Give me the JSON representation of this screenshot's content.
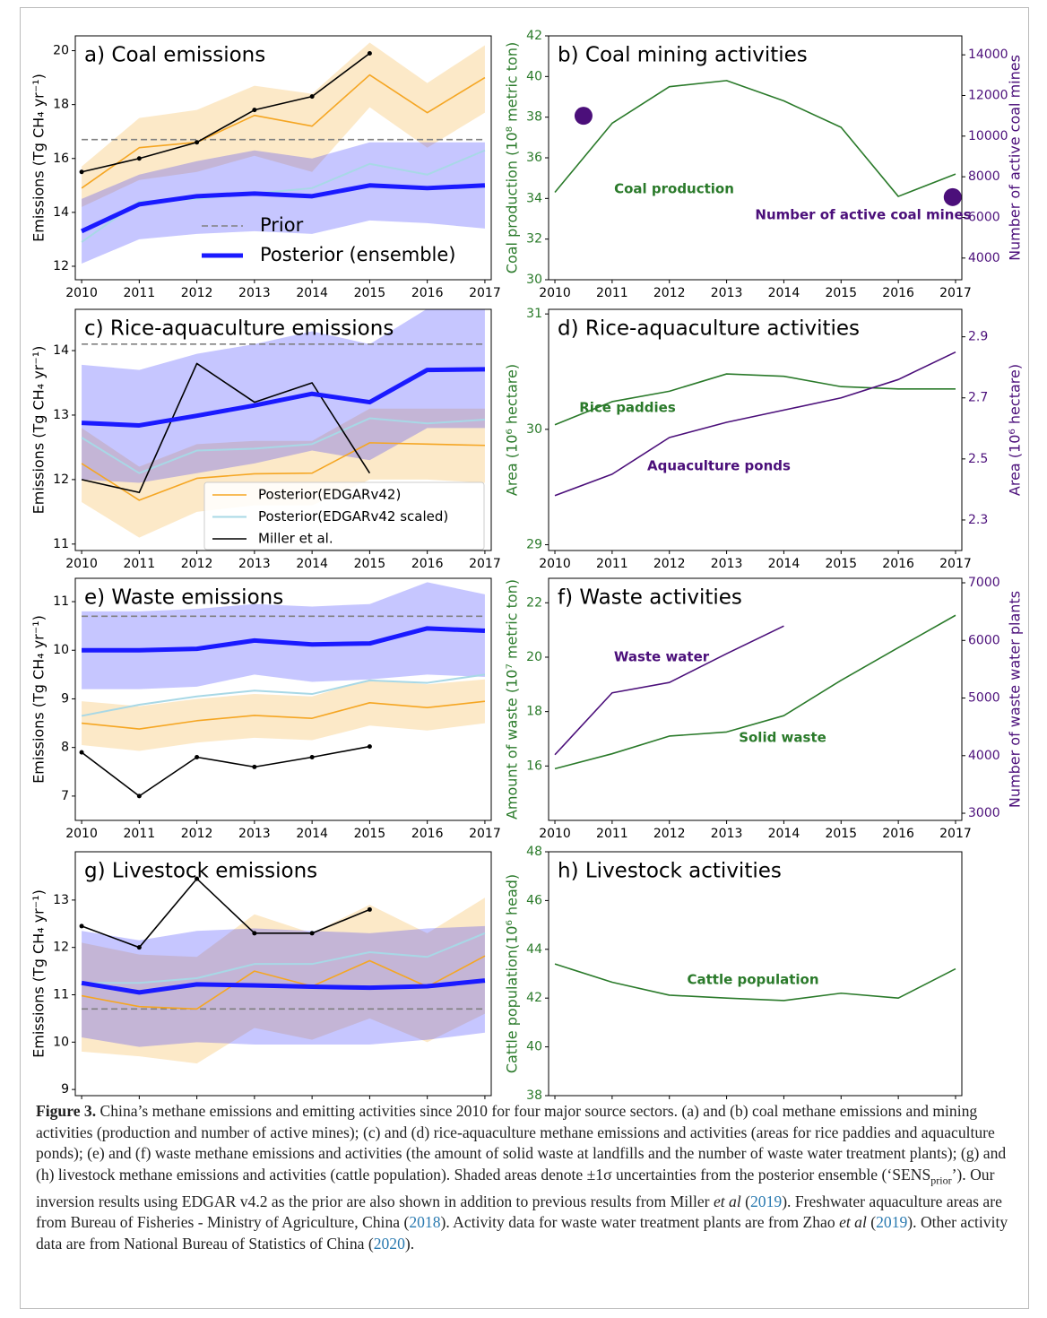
{
  "chart_data": [
    {
      "type": "line",
      "title": "a) Coal emissions",
      "ylabel": "Emissions (Tg CH₄ yr⁻¹)",
      "x": [
        2010,
        2011,
        2012,
        2013,
        2014,
        2015,
        2016,
        2017
      ],
      "xlim": [
        2009.89,
        2017.11
      ],
      "xticks": [
        2010,
        2011,
        2012,
        2013,
        2014,
        2015,
        2016,
        2017
      ],
      "ylim": [
        11.5,
        20.55
      ],
      "yticks": [
        12,
        14,
        16,
        18,
        20
      ],
      "legend": "lower right",
      "series": [
        {
          "name": "Prior",
          "color": "#808080",
          "style": "dashed",
          "values": [
            16.7,
            16.7,
            16.7,
            16.7,
            16.7,
            16.7,
            16.7,
            16.7
          ]
        },
        {
          "color": "#f5a623",
          "values": [
            14.9,
            16.4,
            16.6,
            17.6,
            17.2,
            19.1,
            17.7,
            19.0
          ],
          "lower": [
            14.2,
            15.2,
            15.5,
            16.1,
            15.5,
            17.9,
            16.4,
            17.7
          ],
          "upper": [
            15.7,
            17.5,
            17.8,
            18.7,
            18.4,
            20.3,
            18.8,
            20.2
          ]
        },
        {
          "color": "#a8d8e6",
          "values": [
            12.9,
            14.4,
            14.5,
            14.7,
            14.9,
            15.8,
            15.4,
            16.3
          ]
        },
        {
          "color": "#000000",
          "marker": "dot",
          "values": [
            15.5,
            16.0,
            16.6,
            17.8,
            18.3,
            19.9,
            null,
            null
          ]
        },
        {
          "name": "Posterior (ensemble)",
          "color": "#1a1aff",
          "style": "thick",
          "values": [
            13.3,
            14.3,
            14.6,
            14.7,
            14.6,
            15.0,
            14.9,
            15.0
          ],
          "lower": [
            12.1,
            13.0,
            13.2,
            13.3,
            13.2,
            13.7,
            13.6,
            13.4
          ],
          "upper": [
            14.5,
            15.4,
            15.9,
            16.3,
            16.0,
            16.6,
            16.6,
            16.6
          ]
        }
      ]
    },
    {
      "type": "line",
      "title": "b) Coal mining activities",
      "ylabel": "Coal production (10⁸ metric ton)",
      "y2label": "Number of active coal mines",
      "ycolor": "#2a7a2a",
      "y2color": "#4b0f7a",
      "x": [
        2010,
        2011,
        2012,
        2013,
        2014,
        2015,
        2016,
        2017
      ],
      "xlim": [
        2009.89,
        2017.11
      ],
      "xticks": [
        2010,
        2011,
        2012,
        2013,
        2014,
        2015,
        2016,
        2017
      ],
      "ylim": [
        30,
        42
      ],
      "yticks": [
        30,
        32,
        34,
        36,
        38,
        40,
        42
      ],
      "y2lim": [
        2933,
        14933
      ],
      "y2ticks": [
        4000,
        6000,
        8000,
        10000,
        12000,
        14000
      ],
      "series": [
        {
          "name": "Coal production",
          "color": "#2a7a2a",
          "values": [
            34.3,
            37.7,
            39.5,
            39.8,
            38.8,
            37.5,
            34.1,
            35.2
          ]
        },
        {
          "name": "Number of active coal mines",
          "color": "#4b0f7a",
          "axis": "y2",
          "mode": "markers",
          "x": [
            2010.5,
            2016.95
          ],
          "values": [
            11000,
            7000
          ]
        }
      ]
    },
    {
      "type": "line",
      "title": "c) Rice-aquaculture emissions",
      "ylabel": "Emissions (Tg CH₄ yr⁻¹)",
      "x": [
        2010,
        2011,
        2012,
        2013,
        2014,
        2015,
        2016,
        2017
      ],
      "xlim": [
        2009.89,
        2017.11
      ],
      "xticks": [
        2010,
        2011,
        2012,
        2013,
        2014,
        2015,
        2016,
        2017
      ],
      "ylim": [
        10.9,
        14.64
      ],
      "yticks": [
        11,
        12,
        13,
        14
      ],
      "legend": "lower center",
      "legend_frame": true,
      "series": [
        {
          "color": "#808080",
          "style": "dashed",
          "values": [
            14.1,
            14.1,
            14.1,
            14.1,
            14.1,
            14.1,
            14.1,
            14.1
          ]
        },
        {
          "name": "Posterior(EDGARv42)",
          "color": "#f5a623",
          "values": [
            12.25,
            11.68,
            12.02,
            12.09,
            12.1,
            12.57,
            12.55,
            12.53
          ],
          "lower": [
            11.65,
            11.1,
            11.5,
            11.6,
            11.6,
            12.0,
            12.0,
            11.95
          ],
          "upper": [
            12.8,
            12.2,
            12.55,
            12.6,
            12.6,
            13.1,
            13.1,
            13.1
          ]
        },
        {
          "name": "Posterior(EDGARv42 scaled)",
          "color": "#a8d8e6",
          "values": [
            12.65,
            12.1,
            12.45,
            12.48,
            12.55,
            12.95,
            12.87,
            12.93
          ]
        },
        {
          "name": "Miller et al.",
          "color": "#000000",
          "values": [
            12.0,
            11.8,
            13.8,
            13.2,
            13.5,
            12.1,
            null,
            null
          ]
        },
        {
          "color": "#1a1aff",
          "style": "thick",
          "values": [
            12.88,
            12.84,
            12.99,
            13.15,
            13.33,
            13.2,
            13.7,
            13.71
          ],
          "lower": [
            12.0,
            11.95,
            12.1,
            12.25,
            12.45,
            12.3,
            12.8,
            12.8
          ],
          "upper": [
            13.78,
            13.7,
            13.95,
            14.1,
            14.3,
            14.1,
            14.65,
            14.65
          ]
        }
      ]
    },
    {
      "type": "line",
      "title": "d) Rice-aquaculture activities",
      "ylabel": "Area (10⁶ hectare)",
      "y2label": "Area (10⁶ hectare)",
      "ycolor": "#2a7a2a",
      "y2color": "#4b0f7a",
      "x": [
        2010,
        2011,
        2012,
        2013,
        2014,
        2015,
        2016,
        2017
      ],
      "xlim": [
        2009.89,
        2017.11
      ],
      "xticks": [
        2010,
        2011,
        2012,
        2013,
        2014,
        2015,
        2016,
        2017
      ],
      "ylim": [
        28.95,
        31.04
      ],
      "yticks": [
        29,
        30,
        31
      ],
      "y2lim": [
        2.2,
        2.99
      ],
      "y2ticks": [
        2.3,
        2.5,
        2.7,
        2.9
      ],
      "series": [
        {
          "name": "Rice paddies",
          "color": "#2a7a2a",
          "values": [
            30.04,
            30.24,
            30.33,
            30.48,
            30.46,
            30.37,
            30.35,
            30.35
          ]
        },
        {
          "name": "Aquaculture ponds",
          "color": "#4b0f7a",
          "axis": "y2",
          "values": [
            2.38,
            2.45,
            2.57,
            2.62,
            2.66,
            2.7,
            2.76,
            2.85
          ]
        }
      ]
    },
    {
      "type": "line",
      "title": "e) Waste emissions",
      "ylabel": "Emissions (Tg CH₄ yr⁻¹)",
      "x": [
        2010,
        2011,
        2012,
        2013,
        2014,
        2015,
        2016,
        2017
      ],
      "xlim": [
        2009.89,
        2017.11
      ],
      "xticks": [
        2010,
        2011,
        2012,
        2013,
        2014,
        2015,
        2016,
        2017
      ],
      "ylim": [
        6.5,
        11.48
      ],
      "yticks": [
        7,
        8,
        9,
        10,
        11
      ],
      "series": [
        {
          "color": "#808080",
          "style": "dashed",
          "values": [
            10.7,
            10.7,
            10.7,
            10.7,
            10.7,
            10.7,
            10.7,
            10.7
          ]
        },
        {
          "color": "#f5a623",
          "values": [
            8.5,
            8.38,
            8.55,
            8.66,
            8.6,
            8.92,
            8.82,
            8.95
          ],
          "lower": [
            8.05,
            7.93,
            8.1,
            8.2,
            8.15,
            8.45,
            8.35,
            8.5
          ],
          "upper": [
            8.95,
            8.85,
            9.0,
            9.1,
            9.05,
            9.4,
            9.3,
            9.4
          ]
        },
        {
          "color": "#a8d8e6",
          "values": [
            8.65,
            8.88,
            9.05,
            9.17,
            9.1,
            9.38,
            9.33,
            9.5
          ]
        },
        {
          "color": "#000000",
          "marker": "dot",
          "values": [
            7.9,
            7.0,
            7.8,
            7.6,
            7.8,
            8.02,
            null,
            null
          ]
        },
        {
          "color": "#1a1aff",
          "style": "thick",
          "values": [
            10.0,
            10.0,
            10.03,
            10.2,
            10.12,
            10.14,
            10.45,
            10.4
          ],
          "lower": [
            9.2,
            9.2,
            9.25,
            9.5,
            9.35,
            9.4,
            9.5,
            9.45
          ],
          "upper": [
            10.8,
            10.8,
            10.85,
            10.95,
            10.9,
            10.95,
            11.4,
            11.15
          ]
        }
      ]
    },
    {
      "type": "line",
      "title": "f) Waste activities",
      "ylabel": "Amount of waste (10⁷ metric ton)",
      "y2label": "Number of waste water plants",
      "ycolor": "#2a7a2a",
      "y2color": "#4b0f7a",
      "x": [
        2010,
        2011,
        2012,
        2013,
        2014,
        2015,
        2016,
        2017
      ],
      "xlim": [
        2009.89,
        2017.11
      ],
      "xticks": [
        2010,
        2011,
        2012,
        2013,
        2014,
        2015,
        2016,
        2017
      ],
      "ylim": [
        14.0,
        22.9
      ],
      "yticks": [
        16,
        18,
        20,
        22
      ],
      "y2lim": [
        2876,
        7078
      ],
      "y2ticks": [
        3000,
        4000,
        5000,
        6000,
        7000
      ],
      "series": [
        {
          "name": "Solid waste",
          "color": "#2a7a2a",
          "values": [
            15.9,
            16.45,
            17.1,
            17.25,
            17.85,
            19.15,
            20.35,
            21.54
          ]
        },
        {
          "name": "Waste water",
          "color": "#4b0f7a",
          "axis": "y2",
          "values": [
            4016,
            5090,
            5270,
            5770,
            6250,
            null,
            null,
            null
          ]
        }
      ]
    },
    {
      "type": "line",
      "title": "g) Livestock emissions",
      "ylabel": "Emissions (Tg CH₄ yr⁻¹)",
      "x": [
        2010,
        2011,
        2012,
        2013,
        2014,
        2015,
        2016,
        2017
      ],
      "xlim": [
        2009.89,
        2017.11
      ],
      "xticks": [
        2010,
        2011,
        2012,
        2013,
        2014,
        2015,
        2016,
        2017
      ],
      "ylim": [
        8.87,
        14.02
      ],
      "yticks": [
        9,
        10,
        11,
        12,
        13
      ],
      "series": [
        {
          "color": "#808080",
          "style": "dashed",
          "values": [
            10.7,
            10.7,
            10.7,
            10.7,
            10.7,
            10.7,
            10.7,
            10.7
          ]
        },
        {
          "color": "#f5a623",
          "values": [
            10.98,
            10.75,
            10.7,
            11.5,
            11.18,
            11.72,
            11.17,
            11.82
          ],
          "lower": [
            9.8,
            9.7,
            9.55,
            10.3,
            10.05,
            10.5,
            10.0,
            10.6
          ],
          "upper": [
            12.1,
            11.85,
            11.8,
            12.7,
            12.3,
            12.9,
            12.3,
            13.05
          ]
        },
        {
          "color": "#a8d8e6",
          "values": [
            11.25,
            11.25,
            11.35,
            11.65,
            11.65,
            11.9,
            11.8,
            12.3
          ]
        },
        {
          "color": "#000000",
          "marker": "dot",
          "values": [
            12.45,
            12.0,
            13.45,
            12.3,
            12.3,
            12.8,
            null,
            null
          ]
        },
        {
          "color": "#1a1aff",
          "style": "thick",
          "values": [
            11.25,
            11.05,
            11.22,
            11.2,
            11.17,
            11.15,
            11.18,
            11.3
          ],
          "lower": [
            10.1,
            9.9,
            10.0,
            9.95,
            9.95,
            9.95,
            10.05,
            10.2
          ],
          "upper": [
            12.35,
            12.15,
            12.35,
            12.4,
            12.35,
            12.3,
            12.4,
            12.45
          ]
        }
      ]
    },
    {
      "type": "line",
      "title": "h) Livestock activities",
      "ylabel": "Cattle population(10⁶ head)",
      "ycolor": "#2a7a2a",
      "x": [
        2010,
        2011,
        2012,
        2013,
        2014,
        2015,
        2016,
        2017
      ],
      "xlim": [
        2009.89,
        2017.11
      ],
      "xticks": [
        2010,
        2011,
        2012,
        2013,
        2014,
        2015,
        2016,
        2017
      ],
      "ylim": [
        38,
        48
      ],
      "yticks": [
        38,
        40,
        42,
        44,
        46,
        48
      ],
      "series": [
        {
          "name": "Cattle population",
          "color": "#2a7a2a",
          "values": [
            43.4,
            42.65,
            42.12,
            42.0,
            41.9,
            42.2,
            42.0,
            43.2
          ]
        }
      ]
    }
  ],
  "caption": [
    "Figure 3.",
    " China’s methane emissions and emitting activities since 2010 for four major source sectors. (a) and (b) coal methane emissions and mining activities (production and number of active mines); (c) and (d) rice-aquaculture methane emissions and activities (areas for rice paddies and aquaculture ponds); (e) and (f) waste methane emissions and activities (the amount of solid waste at landfills and the number of waste water treatment plants); (g) and (h) livestock methane emissions and activities (cattle population). Shaded areas denote ±1σ uncertainties from the posterior ensemble (‘SENS",
    "prior",
    "’). Our inversion results using EDGAR v4.2 as the prior are also shown in addition to previous results from Miller ",
    "et al",
    " (",
    "2019",
    "). Freshwater aquaculture areas are from Bureau of Fisheries - Ministry of Agriculture, China (",
    "2018",
    "). Activity data for waste water treatment plants are from Zhao ",
    "et al",
    " (",
    "2019",
    "). Other activity data are from National Bureau of Statistics of China (",
    "2020",
    ")."
  ]
}
